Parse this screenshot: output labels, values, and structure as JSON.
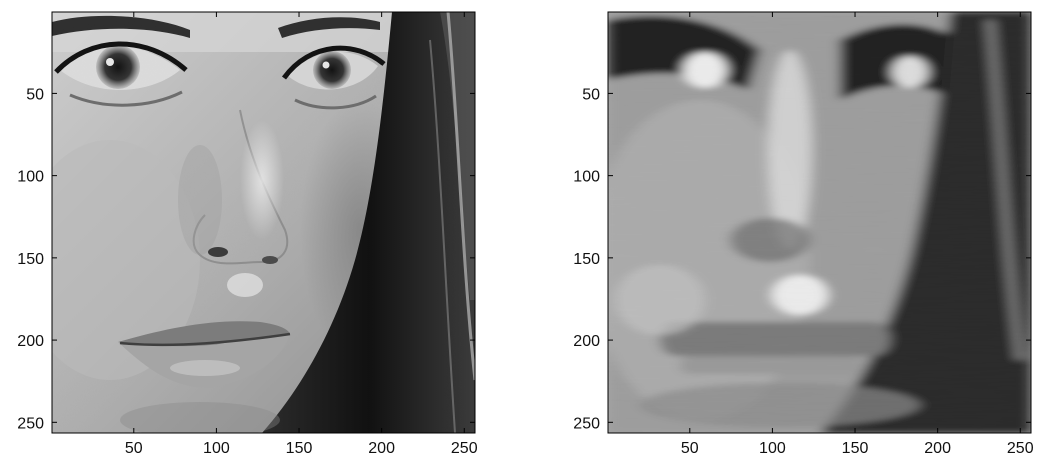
{
  "figure": {
    "panels": [
      {
        "name": "original-image",
        "xticks": [
          50,
          100,
          150,
          200,
          250
        ],
        "yticks": [
          50,
          100,
          150,
          200,
          250
        ],
        "xlim": [
          0.5,
          256.5
        ],
        "ylim": [
          0.5,
          256.5
        ],
        "y_reversed": true
      },
      {
        "name": "reconstructed-image",
        "xticks": [
          50,
          100,
          150,
          200,
          250
        ],
        "yticks": [
          50,
          100,
          150,
          200,
          250
        ],
        "xlim": [
          0.5,
          256.5
        ],
        "ylim": [
          0.5,
          256.5
        ],
        "y_reversed": true
      }
    ]
  },
  "colors": {
    "axes_frame": "#000000",
    "tick_label": "#111111",
    "background": "#ffffff"
  }
}
